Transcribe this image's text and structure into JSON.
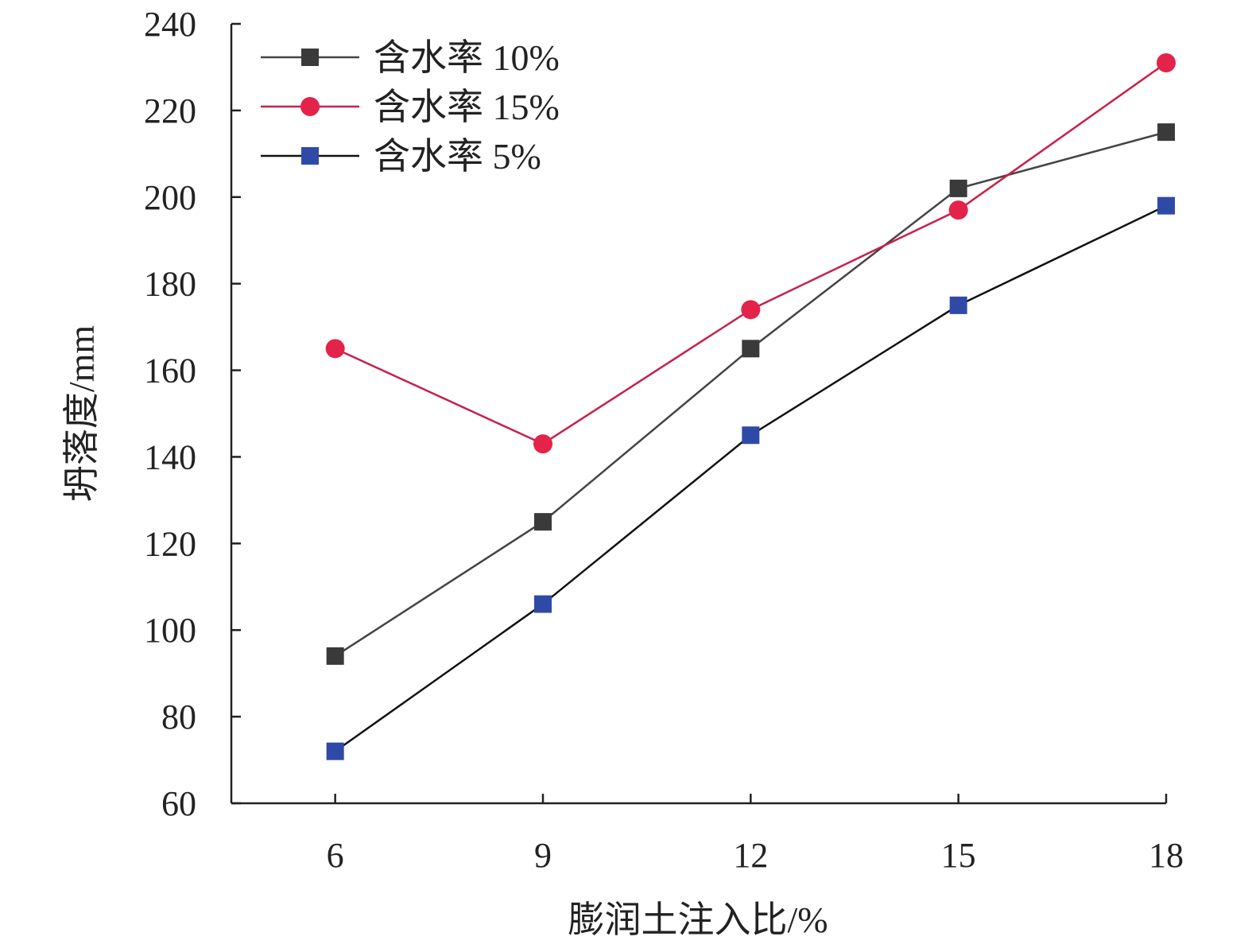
{
  "chart_data": {
    "type": "line",
    "title": "",
    "xlabel": "膨润土注入比/%",
    "ylabel": "坍落度/mm",
    "x": [
      6,
      9,
      12,
      15,
      18
    ],
    "xticks": [
      "6",
      "9",
      "12",
      "15",
      "18"
    ],
    "yticks": [
      "60",
      "80",
      "100",
      "120",
      "140",
      "160",
      "180",
      "200",
      "220",
      "240"
    ],
    "xlim": [
      4.5,
      18
    ],
    "ylim": [
      60,
      240
    ],
    "grid": false,
    "legend_position": "top-left",
    "series": [
      {
        "name": "含水率 10%",
        "values": [
          94,
          125,
          165,
          202,
          215
        ],
        "line_color": "#444444",
        "marker_color": "#3a3a3a",
        "marker": "square"
      },
      {
        "name": "含水率 15%",
        "values": [
          165,
          143,
          174,
          197,
          231
        ],
        "line_color": "#c8204a",
        "marker_color": "#e4234a",
        "marker": "circle"
      },
      {
        "name": "含水率 5%",
        "values": [
          72,
          106,
          145,
          175,
          198
        ],
        "line_color": "#111111",
        "marker_color": "#2f4aa6",
        "marker": "square"
      }
    ]
  }
}
